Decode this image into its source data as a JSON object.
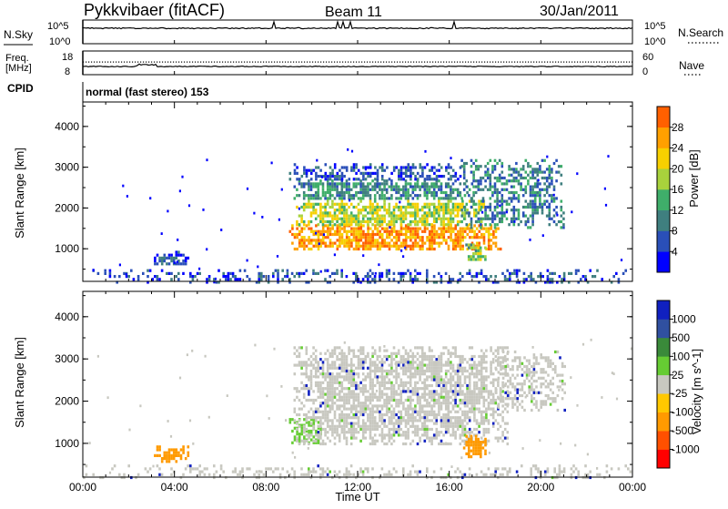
{
  "header": {
    "station": "Pykkvibaer (fitACF)",
    "beam": "Beam 11",
    "date": "30/Jan/2011"
  },
  "noise_panel": {
    "left_label": "N.Sky",
    "right_label": "N.Search",
    "left_ticks": [
      "10^5",
      "10^0"
    ],
    "right_ticks": [
      "10^5",
      "10^0"
    ]
  },
  "freq_panel": {
    "left_label_1": "Freq.",
    "left_label_2": "[MHz]",
    "left_ticks": [
      "18",
      "8"
    ],
    "right_ticks": [
      "60",
      "0"
    ],
    "right_label": "Nave"
  },
  "cpid_panel": {
    "label": "CPID",
    "text": "normal (fast stereo) 153"
  },
  "colors": {
    "power_scale": [
      "#0000ff",
      "#2a4fb8",
      "#3f7f7f",
      "#3fae6a",
      "#a8d23c",
      "#f7d000",
      "#ffa000",
      "#ff6000",
      "#ff0000"
    ],
    "velocity_scale": [
      "#1020c0",
      "#3050a0",
      "#3a8a3a",
      "#66cc33",
      "#c8c8c0",
      "#ffc800",
      "#ff9a00",
      "#ff5000",
      "#ff0000"
    ],
    "ground_scatter": "#c8c8c0"
  },
  "chart_data": [
    {
      "type": "heatmap",
      "name": "power",
      "ylabel": "Slant Range [km]",
      "yticks": [
        "1000",
        "2000",
        "3000",
        "4000"
      ],
      "ylim": [
        200,
        4600
      ],
      "xlim": [
        0,
        24
      ],
      "xticks": [
        0,
        4,
        8,
        12,
        16,
        20,
        24
      ],
      "colorbar_title": "Power [dB]",
      "colorbar_ticks": [
        "4",
        "8",
        "12",
        "16",
        "20",
        "24",
        "28"
      ],
      "colorbar_range": [
        0,
        30
      ],
      "regions": [
        {
          "t0": 0.0,
          "t1": 24.0,
          "r0": 200,
          "r1": 500,
          "level": 6,
          "density": 0.35
        },
        {
          "t0": 3.0,
          "t1": 4.6,
          "r0": 600,
          "r1": 950,
          "level": 7,
          "density": 0.55
        },
        {
          "t0": 9.0,
          "t1": 18.2,
          "r0": 1000,
          "r1": 1600,
          "level": 26,
          "density": 0.8
        },
        {
          "t0": 9.3,
          "t1": 17.5,
          "r0": 1600,
          "r1": 2200,
          "level": 19,
          "density": 0.75
        },
        {
          "t0": 9.2,
          "t1": 17.0,
          "r0": 2200,
          "r1": 2700,
          "level": 11,
          "density": 0.7
        },
        {
          "t0": 9.0,
          "t1": 16.5,
          "r0": 2700,
          "r1": 3100,
          "level": 6,
          "density": 0.5
        },
        {
          "t0": 16.5,
          "t1": 21.0,
          "r0": 1500,
          "r1": 3200,
          "level": 10,
          "density": 0.45
        },
        {
          "t0": 16.7,
          "t1": 17.6,
          "r0": 700,
          "r1": 1200,
          "level": 16,
          "density": 0.7
        }
      ]
    },
    {
      "type": "heatmap",
      "name": "velocity",
      "ylabel": "Slant Range [km]",
      "yticks": [
        "1000",
        "2000",
        "3000",
        "4000"
      ],
      "ylim": [
        200,
        4600
      ],
      "xlim": [
        0,
        24
      ],
      "xticks": [
        0,
        4,
        8,
        12,
        16,
        20,
        24
      ],
      "xticklabels": [
        "00:00",
        "04:00",
        "08:00",
        "12:00",
        "16:00",
        "20:00",
        "00:00"
      ],
      "xlabel": "Time UT",
      "colorbar_title": "Velocity [m s^-1]",
      "colorbar_ticks": [
        "1000",
        "500",
        "100",
        "25",
        "-25",
        "-100",
        "-500",
        "-1000"
      ],
      "regions": [
        {
          "t0": 0.0,
          "t1": 24.0,
          "r0": 200,
          "r1": 500,
          "category": "ground",
          "density": 0.3
        },
        {
          "t0": 3.0,
          "t1": 4.6,
          "r0": 600,
          "r1": 950,
          "category": "-100",
          "density": 0.6
        },
        {
          "t0": 9.0,
          "t1": 10.4,
          "r0": 1000,
          "r1": 1600,
          "category": "100",
          "density": 0.6
        },
        {
          "t0": 9.2,
          "t1": 18.5,
          "r0": 1000,
          "r1": 3300,
          "category": "ground",
          "density": 0.7
        },
        {
          "t0": 16.6,
          "t1": 17.6,
          "r0": 700,
          "r1": 1200,
          "category": "-100",
          "density": 0.75
        },
        {
          "t0": 18.0,
          "t1": 21.0,
          "r0": 1800,
          "r1": 3200,
          "category": "ground",
          "density": 0.45
        }
      ]
    }
  ]
}
